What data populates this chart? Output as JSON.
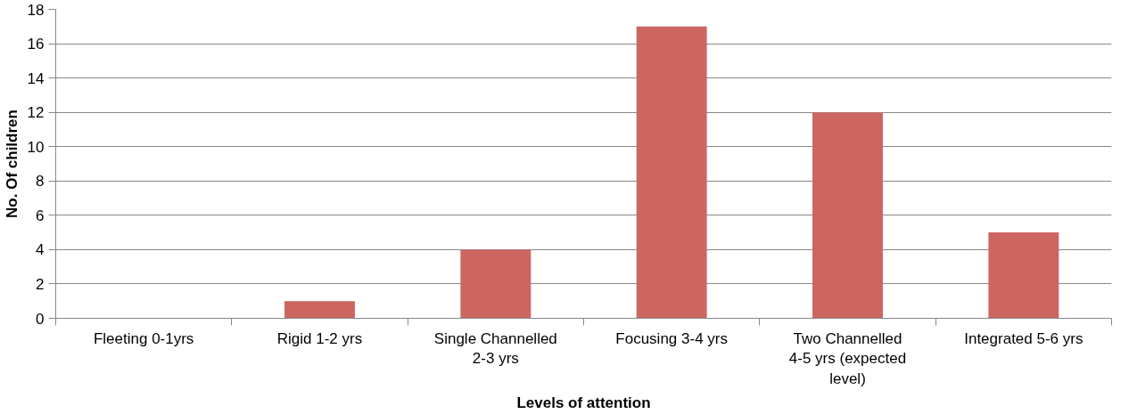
{
  "chart_data": {
    "type": "bar",
    "xlabel": "Levels of attention",
    "ylabel": "No. Of children",
    "categories": [
      "Fleeting 0-1yrs",
      "Rigid 1-2 yrs",
      "Single Channelled 2-3 yrs",
      "Focusing 3-4 yrs",
      "Two Channelled 4-5 yrs (expected level)",
      "Integrated 5-6 yrs"
    ],
    "values": [
      0,
      1,
      4,
      17,
      12,
      5
    ],
    "color": "#cd6660",
    "ylim": [
      0,
      18
    ],
    "yticks": [
      0,
      2,
      4,
      6,
      8,
      10,
      12,
      14,
      16,
      18
    ],
    "grid": "y"
  }
}
